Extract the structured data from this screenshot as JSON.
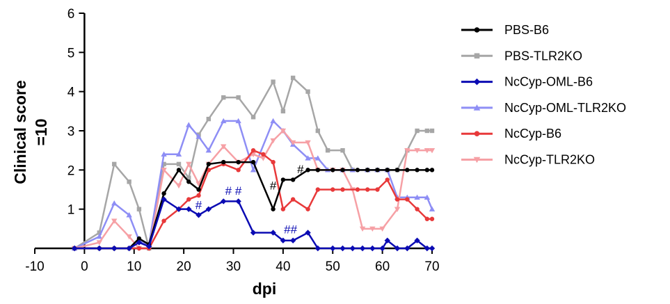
{
  "chart_data": {
    "type": "line",
    "title": "",
    "xlabel": "dpi",
    "ylabel_lines": [
      "Clinical score",
      "=10"
    ],
    "xlim": [
      -10,
      70
    ],
    "ylim": [
      0,
      6
    ],
    "x_ticks": [
      -10,
      0,
      10,
      20,
      30,
      40,
      50,
      60,
      70
    ],
    "y_ticks": [
      1,
      2,
      3,
      4,
      5,
      6
    ],
    "legend_position": "right",
    "series": [
      {
        "name": "PBS-B6",
        "color": "#000000",
        "marker": "circle",
        "points": [
          [
            -2,
            0
          ],
          [
            3,
            0
          ],
          [
            6,
            0
          ],
          [
            9,
            0
          ],
          [
            11,
            0.25
          ],
          [
            13,
            0.1
          ],
          [
            16,
            1.4
          ],
          [
            19,
            2
          ],
          [
            21,
            1.7
          ],
          [
            23,
            1.5
          ],
          [
            25,
            2.15
          ],
          [
            28,
            2.2
          ],
          [
            31,
            2.2
          ],
          [
            34,
            2.2
          ],
          [
            38,
            1
          ],
          [
            40,
            1.75
          ],
          [
            42,
            1.75
          ],
          [
            45,
            2
          ],
          [
            47,
            2
          ],
          [
            50,
            2
          ],
          [
            52,
            2
          ],
          [
            55,
            2
          ],
          [
            57,
            2
          ],
          [
            59,
            2
          ],
          [
            61,
            2
          ],
          [
            63,
            2
          ],
          [
            65,
            2
          ],
          [
            67,
            2
          ],
          [
            69,
            2
          ],
          [
            70,
            2
          ]
        ]
      },
      {
        "name": "PBS-TLR2KO",
        "color": "#a6a6a6",
        "marker": "square",
        "points": [
          [
            -2,
            0
          ],
          [
            3,
            0.4
          ],
          [
            6,
            2.15
          ],
          [
            9,
            1.7
          ],
          [
            11,
            1
          ],
          [
            13,
            0
          ],
          [
            16,
            2.15
          ],
          [
            19,
            2.15
          ],
          [
            21,
            1.8
          ],
          [
            23,
            2.9
          ],
          [
            25,
            3.3
          ],
          [
            28,
            3.85
          ],
          [
            31,
            3.85
          ],
          [
            34,
            3.35
          ],
          [
            38,
            4.25
          ],
          [
            40,
            3.5
          ],
          [
            42,
            4.35
          ],
          [
            45,
            4
          ],
          [
            47,
            3
          ],
          [
            49,
            2.5
          ],
          [
            52,
            2.5
          ],
          [
            54,
            2
          ],
          [
            57,
            2
          ],
          [
            59,
            2
          ],
          [
            61,
            2
          ],
          [
            63,
            2
          ],
          [
            65,
            2.5
          ],
          [
            67,
            3
          ],
          [
            69,
            3
          ],
          [
            70,
            3
          ]
        ]
      },
      {
        "name": "NcCyp-OML-B6",
        "color": "#0b0bb3",
        "marker": "diamond",
        "points": [
          [
            -2,
            0
          ],
          [
            3,
            0
          ],
          [
            6,
            0
          ],
          [
            9,
            0
          ],
          [
            11,
            0.15
          ],
          [
            13,
            0.05
          ],
          [
            16,
            1.25
          ],
          [
            19,
            1
          ],
          [
            21,
            1
          ],
          [
            23,
            0.85
          ],
          [
            25,
            1
          ],
          [
            28,
            1.2
          ],
          [
            31,
            1.2
          ],
          [
            34,
            0.4
          ],
          [
            38,
            0.4
          ],
          [
            40,
            0.2
          ],
          [
            42,
            0.2
          ],
          [
            45,
            0.4
          ],
          [
            47,
            0
          ],
          [
            50,
            0
          ],
          [
            52,
            0
          ],
          [
            54,
            0
          ],
          [
            56,
            0
          ],
          [
            58,
            0
          ],
          [
            60,
            0
          ],
          [
            61,
            0.2
          ],
          [
            63,
            0
          ],
          [
            65,
            0
          ],
          [
            67,
            0.2
          ],
          [
            69,
            0
          ],
          [
            70,
            0
          ]
        ]
      },
      {
        "name": "NcCyp-OML-TLR2KO",
        "color": "#8e8ef5",
        "marker": "triangle-up",
        "points": [
          [
            -2,
            0
          ],
          [
            3,
            0.3
          ],
          [
            6,
            1.15
          ],
          [
            9,
            0.85
          ],
          [
            11,
            0.2
          ],
          [
            13,
            0.1
          ],
          [
            16,
            2.4
          ],
          [
            19,
            2.4
          ],
          [
            21,
            3.15
          ],
          [
            23,
            2.85
          ],
          [
            25,
            2.5
          ],
          [
            28,
            3.25
          ],
          [
            31,
            3.25
          ],
          [
            34,
            2
          ],
          [
            38,
            3.25
          ],
          [
            40,
            3
          ],
          [
            42,
            2.65
          ],
          [
            45,
            2.3
          ],
          [
            47,
            2.3
          ],
          [
            49,
            2
          ],
          [
            52,
            2
          ],
          [
            54,
            2
          ],
          [
            57,
            2
          ],
          [
            59,
            2
          ],
          [
            61,
            2
          ],
          [
            63,
            1.3
          ],
          [
            65,
            1.3
          ],
          [
            67,
            1.3
          ],
          [
            69,
            1.3
          ],
          [
            70,
            1
          ]
        ]
      },
      {
        "name": "NcCyp-B6",
        "color": "#e8393a",
        "marker": "circle",
        "points": [
          [
            -2,
            0
          ],
          [
            3,
            0
          ],
          [
            6,
            0
          ],
          [
            9,
            0
          ],
          [
            11,
            0
          ],
          [
            13,
            0
          ],
          [
            16,
            0.7
          ],
          [
            19,
            1
          ],
          [
            21,
            1.25
          ],
          [
            23,
            1.35
          ],
          [
            25,
            2
          ],
          [
            28,
            2.15
          ],
          [
            31,
            2
          ],
          [
            34,
            2.5
          ],
          [
            36,
            2.4
          ],
          [
            38,
            2.2
          ],
          [
            40,
            1
          ],
          [
            42,
            1.25
          ],
          [
            45,
            1
          ],
          [
            47,
            1.5
          ],
          [
            50,
            1.5
          ],
          [
            52,
            1.5
          ],
          [
            55,
            1.5
          ],
          [
            57,
            1.5
          ],
          [
            59,
            1.5
          ],
          [
            61,
            1.75
          ],
          [
            63,
            1.25
          ],
          [
            65,
            1.25
          ],
          [
            67,
            1
          ],
          [
            69,
            0.75
          ],
          [
            70,
            0.75
          ]
        ]
      },
      {
        "name": "NcCyp-TLR2KO",
        "color": "#f6a0a5",
        "marker": "triangle-down",
        "points": [
          [
            -2,
            0
          ],
          [
            3,
            0.15
          ],
          [
            6,
            0.7
          ],
          [
            9,
            0.3
          ],
          [
            11,
            0
          ],
          [
            13,
            0
          ],
          [
            16,
            2
          ],
          [
            19,
            1.6
          ],
          [
            21,
            2.15
          ],
          [
            23,
            1.65
          ],
          [
            25,
            2.15
          ],
          [
            28,
            2.6
          ],
          [
            31,
            2.2
          ],
          [
            34,
            2.4
          ],
          [
            36,
            2.3
          ],
          [
            38,
            2.75
          ],
          [
            40,
            3
          ],
          [
            42,
            2.7
          ],
          [
            45,
            2.7
          ],
          [
            47,
            2
          ],
          [
            50,
            2
          ],
          [
            52,
            2
          ],
          [
            54,
            1.5
          ],
          [
            56,
            0.5
          ],
          [
            58,
            0.5
          ],
          [
            60,
            0.5
          ],
          [
            63,
            1
          ],
          [
            65,
            2.5
          ],
          [
            67,
            2.5
          ],
          [
            69,
            2.5
          ],
          [
            70,
            2.5
          ]
        ]
      }
    ],
    "annotations": [
      {
        "text": "#",
        "x": 23,
        "y": 1.0,
        "color": "#0b0bb3"
      },
      {
        "text": "# #",
        "x": 30,
        "y": 1.37,
        "color": "#0b0bb3"
      },
      {
        "text": "#",
        "x": 38,
        "y": 1.5,
        "color": "#000000"
      },
      {
        "text": "#",
        "x": 43.5,
        "y": 1.92,
        "color": "#000000"
      },
      {
        "text": "##",
        "x": 41.5,
        "y": 0.38,
        "color": "#0b0bb3"
      }
    ]
  }
}
